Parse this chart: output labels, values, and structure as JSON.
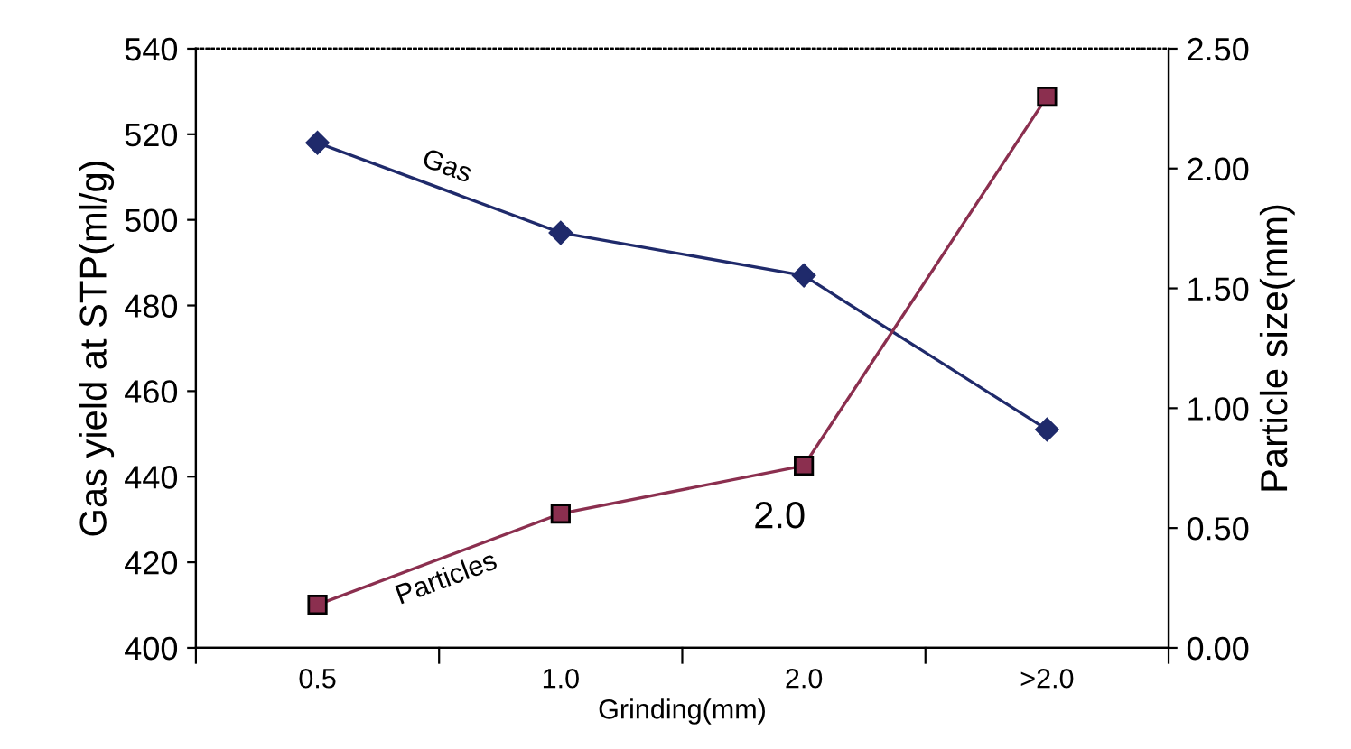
{
  "chart_data": {
    "type": "line",
    "xlabel": "Grinding(mm)",
    "ylabel": "Gas yield at STP(ml/g)",
    "y2label": "Particle size(mm)",
    "categories": [
      "0.5",
      "1.0",
      "2.0",
      ">2.0"
    ],
    "series": [
      {
        "name": "Gas",
        "color": "#1f2a6b",
        "marker": "diamond",
        "values": [
          518,
          497,
          487,
          451
        ]
      },
      {
        "name": "Particles",
        "color": "#8b2f4f",
        "marker": "square",
        "axis": "y2",
        "values": [
          0.18,
          0.56,
          0.76,
          2.3
        ]
      }
    ],
    "ylim": [
      400,
      540
    ],
    "yticks": [
      400,
      420,
      440,
      460,
      480,
      500,
      520,
      540
    ],
    "y2lim": [
      0,
      2.5
    ],
    "y2ticks": [
      {
        "value": 0,
        "label": "0.00"
      },
      {
        "value": 0.5,
        "label": "0.50"
      },
      {
        "value": 1,
        "label": "1.00"
      },
      {
        "value": 1.5,
        "label": "1.50"
      },
      {
        "value": 2,
        "label": "2.00"
      },
      {
        "value": 2.5,
        "label": "2.50"
      }
    ],
    "annotations": [
      "2.0"
    ],
    "legend": false,
    "grid": false,
    "line_style": "solid"
  }
}
